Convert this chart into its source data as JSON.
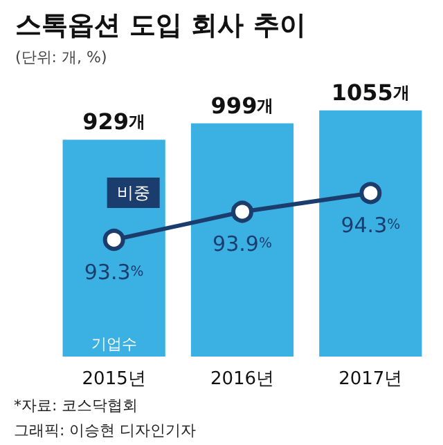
{
  "chart_data": {
    "type": "bar",
    "title": "스톡옵션 도입 회사 추이",
    "subtitle": "(단위: 개, %)",
    "categories": [
      "2015년",
      "2016년",
      "2017년"
    ],
    "series": [
      {
        "name": "기업수",
        "color": "#3bb0e3",
        "values": [
          929,
          999,
          1055
        ],
        "value_labels": [
          "929개",
          "999개",
          "1055개"
        ]
      },
      {
        "name": "비중",
        "type": "line",
        "axis": "y2",
        "color": "#1b3d6e",
        "marker": "circle",
        "values": [
          93.3,
          93.9,
          94.3
        ],
        "value_labels": [
          "93.3%",
          "93.9%",
          "94.3%"
        ]
      }
    ],
    "legend": false,
    "annotations": [
      "*자료: 코스닥협회",
      "그래픽: 이승현 디자인기자"
    ]
  }
}
